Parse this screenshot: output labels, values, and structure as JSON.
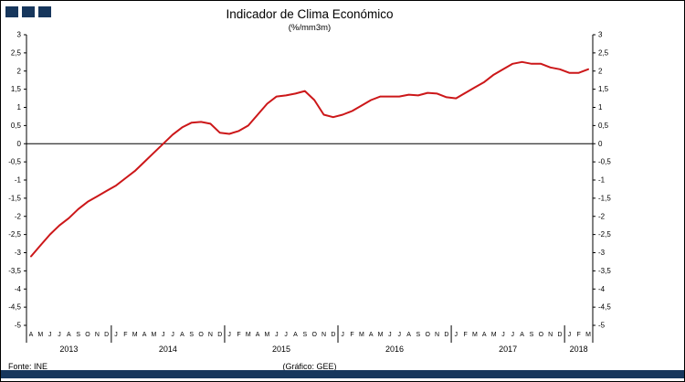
{
  "header": {
    "title": "Indicador de Clima Económico",
    "subtitle": "(%/mm3m)"
  },
  "footer": {
    "source": "Fonte:  INE",
    "credit": "(Gráfico: GEE)"
  },
  "logo": {
    "square_count": 3,
    "color": "#17375d"
  },
  "colors": {
    "accent_bar": "#17375d",
    "line": "#cc1719",
    "axis": "#000000"
  },
  "chart_data": {
    "type": "line",
    "title": "Indicador de Clima Económico",
    "subtitle": "(%/mm3m)",
    "ylim": [
      -5,
      3
    ],
    "ytick_step": 0.5,
    "ytick_labels": [
      "3",
      "2,5",
      "2",
      "1,5",
      "1",
      "0,5",
      "0",
      "-0,5",
      "-1",
      "-1,5",
      "-2",
      "-2,5",
      "-3",
      "-3,5",
      "-4",
      "-4,5",
      "-5"
    ],
    "grid": false,
    "legend": "none",
    "decimal_separator": ",",
    "x_months": [
      "A",
      "M",
      "J",
      "J",
      "A",
      "S",
      "O",
      "N",
      "D",
      "J",
      "F",
      "M",
      "A",
      "M",
      "J",
      "J",
      "A",
      "S",
      "O",
      "N",
      "D",
      "J",
      "F",
      "M",
      "A",
      "M",
      "J",
      "J",
      "A",
      "S",
      "O",
      "N",
      "D",
      "J",
      "F",
      "M",
      "A",
      "M",
      "J",
      "J",
      "A",
      "S",
      "O",
      "N",
      "D",
      "J",
      "F",
      "M",
      "A",
      "M",
      "J",
      "J",
      "A",
      "S",
      "O",
      "N",
      "D",
      "J",
      "F",
      "M"
    ],
    "years": [
      {
        "label": "2013",
        "count": 9
      },
      {
        "label": "2014",
        "count": 12
      },
      {
        "label": "2015",
        "count": 12
      },
      {
        "label": "2016",
        "count": 12
      },
      {
        "label": "2017",
        "count": 12
      },
      {
        "label": "2018",
        "count": 3
      }
    ],
    "series": [
      {
        "name": "Indicador de Clima Económico",
        "color": "#cc1719",
        "values": [
          -3.1,
          -2.8,
          -2.5,
          -2.25,
          -2.05,
          -1.8,
          -1.6,
          -1.45,
          -1.3,
          -1.15,
          -0.95,
          -0.75,
          -0.5,
          -0.25,
          0.0,
          0.25,
          0.45,
          0.58,
          0.6,
          0.55,
          0.3,
          0.27,
          0.35,
          0.5,
          0.8,
          1.1,
          1.3,
          1.33,
          1.38,
          1.45,
          1.2,
          0.8,
          0.73,
          0.8,
          0.9,
          1.05,
          1.2,
          1.3,
          1.3,
          1.3,
          1.35,
          1.33,
          1.4,
          1.38,
          1.28,
          1.25,
          1.4,
          1.55,
          1.7,
          1.9,
          2.05,
          2.2,
          2.25,
          2.2,
          2.2,
          2.1,
          2.05,
          1.95,
          1.95,
          2.05
        ]
      }
    ]
  }
}
